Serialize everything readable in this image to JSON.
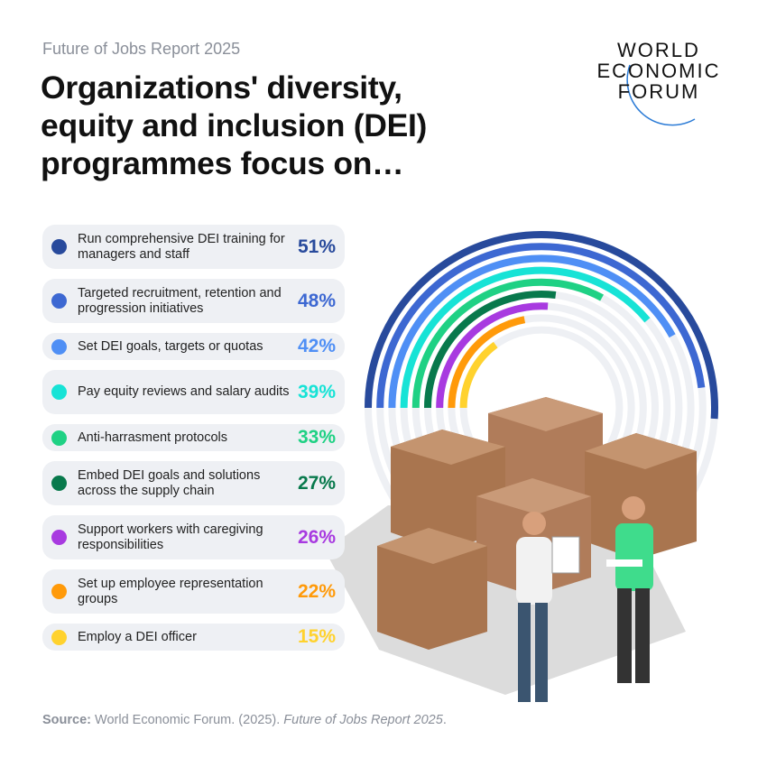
{
  "header": {
    "kicker": "Future of Jobs Report 2025",
    "title": "Organizations' diversity, equity and inclusion (DEI) programmes focus on…"
  },
  "logo": {
    "lines": [
      "WORLD",
      "ECONOMIC",
      "FORUM"
    ]
  },
  "chart_data": {
    "type": "radial-bar",
    "max": 100,
    "categories": [
      "Run comprehensive DEI training for managers and staff",
      "Targeted recruitment, retention and progression initiatives",
      "Set DEI goals, targets or quotas",
      "Pay equity reviews and salary audits",
      "Anti-harrasment protocols",
      "Embed DEI goals and solutions across the supply chain",
      "Support workers with caregiving responsibilities",
      "Set up employee representation groups",
      "Employ a DEI officer"
    ],
    "values": [
      51,
      48,
      42,
      39,
      33,
      27,
      26,
      22,
      15
    ],
    "labels": [
      "51%",
      "48%",
      "42%",
      "39%",
      "33%",
      "27%",
      "26%",
      "22%",
      "15%"
    ],
    "colors": [
      "#284a9c",
      "#3d68d2",
      "#4f8ff5",
      "#17e3d6",
      "#1fd184",
      "#08794c",
      "#a83ae0",
      "#ff9a0a",
      "#ffd22e"
    ],
    "track_color": "#eef0f4"
  },
  "source": {
    "label": "Source:",
    "text": " World Economic Forum. (2025). ",
    "italic": "Future of Jobs Report 2025",
    "end": "."
  }
}
